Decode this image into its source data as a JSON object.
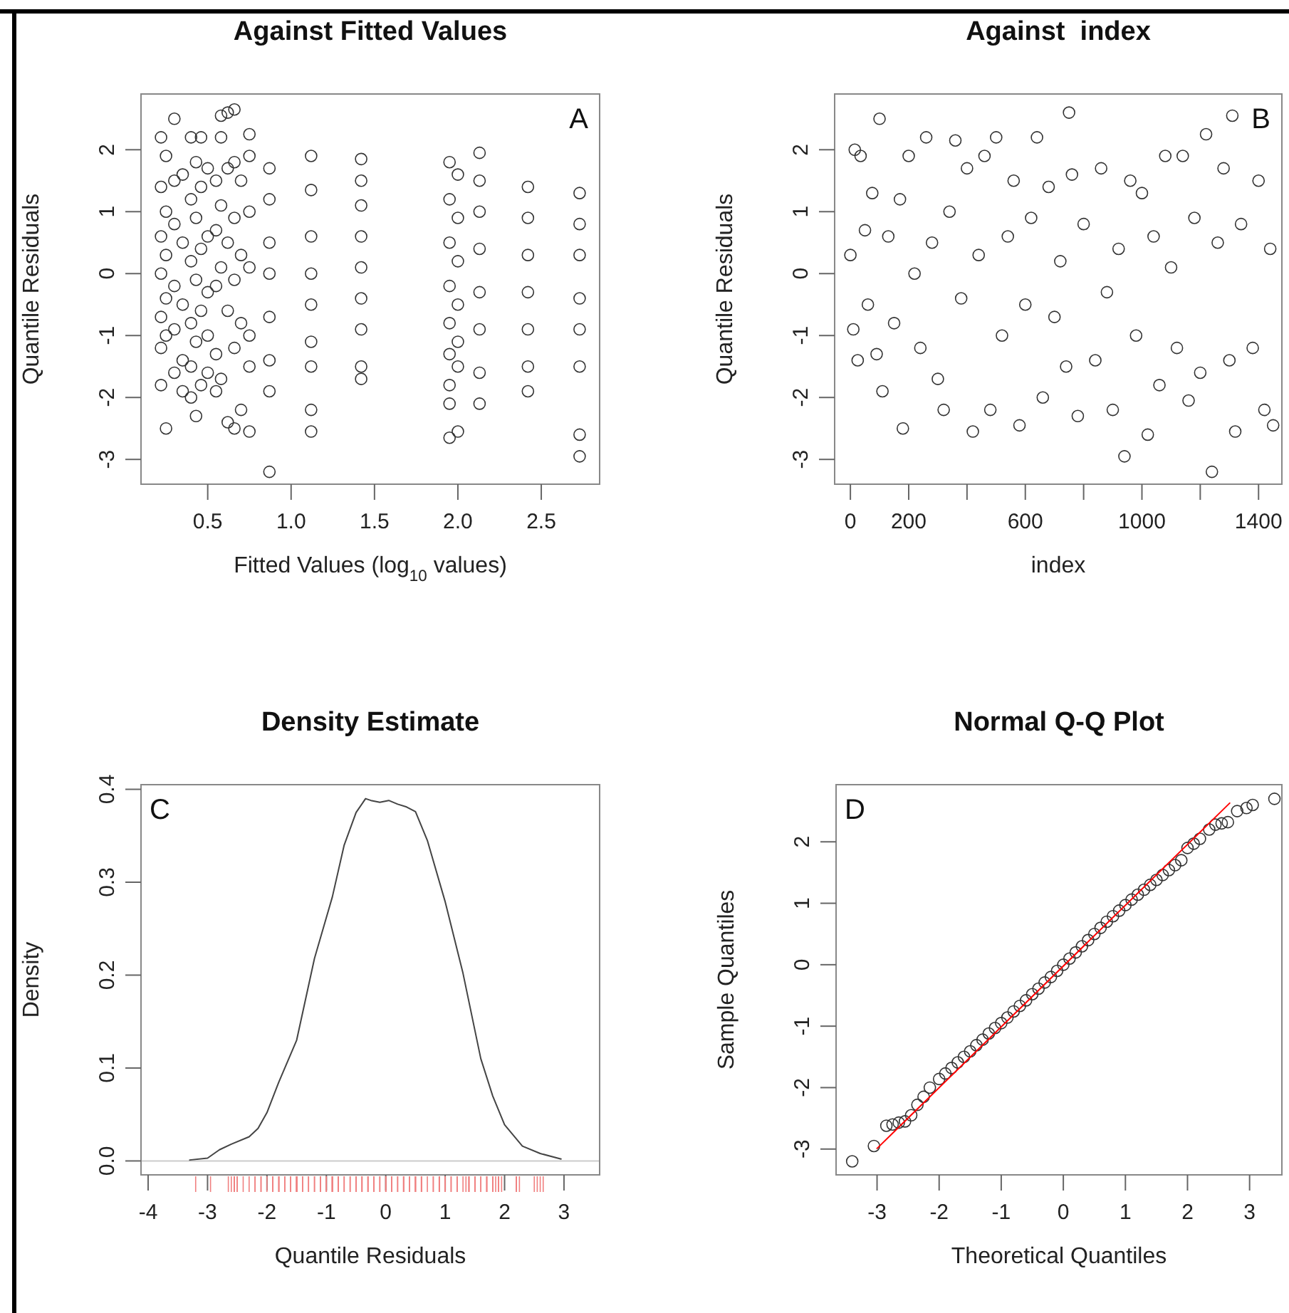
{
  "chart_data": [
    {
      "type": "scatter",
      "title": "Against Fitted Values",
      "xlabel": "Fitted Values (log$_{10}$ values)",
      "ylabel": "Quantile Residuals",
      "annotations": [
        "A"
      ],
      "marker": "circle",
      "xlim": [
        0.1,
        2.85
      ],
      "ylim": [
        -3.4,
        2.9
      ],
      "xticks": [
        0.5,
        {
          "value": 1,
          "label": "1.0"
        },
        1.5,
        {
          "value": 2,
          "label": "2.0"
        },
        2.5
      ],
      "yticks": [
        -3,
        -2,
        -1,
        0,
        1,
        2
      ],
      "series": [
        {
          "color": "#333333",
          "x": [
            0.22,
            0.22,
            0.22,
            0.22,
            0.22,
            0.22,
            0.22,
            0.25,
            0.25,
            0.25,
            0.25,
            0.25,
            0.25,
            0.3,
            0.3,
            0.3,
            0.3,
            0.3,
            0.3,
            0.35,
            0.35,
            0.35,
            0.35,
            0.35,
            0.4,
            0.4,
            0.4,
            0.4,
            0.4,
            0.4,
            0.43,
            0.43,
            0.43,
            0.43,
            0.43,
            0.46,
            0.46,
            0.46,
            0.46,
            0.46,
            0.5,
            0.5,
            0.5,
            0.5,
            0.5,
            0.55,
            0.55,
            0.55,
            0.55,
            0.55,
            0.58,
            0.58,
            0.58,
            0.58,
            0.58,
            0.62,
            0.62,
            0.62,
            0.62,
            0.62,
            0.66,
            0.66,
            0.66,
            0.66,
            0.66,
            0.66,
            0.7,
            0.7,
            0.7,
            0.7,
            0.75,
            0.75,
            0.75,
            0.75,
            0.75,
            0.75,
            0.75,
            0.87,
            0.87,
            0.87,
            0.87,
            0.87,
            0.87,
            0.87,
            0.87,
            1.12,
            1.12,
            1.12,
            1.12,
            1.12,
            1.12,
            1.12,
            1.12,
            1.12,
            1.42,
            1.42,
            1.42,
            1.42,
            1.42,
            1.42,
            1.42,
            1.42,
            1.42,
            1.95,
            1.95,
            1.95,
            1.95,
            1.95,
            1.95,
            1.95,
            1.95,
            1.95,
            2.0,
            2.0,
            2.0,
            2.0,
            2.0,
            2.0,
            2.0,
            2.13,
            2.13,
            2.13,
            2.13,
            2.13,
            2.13,
            2.13,
            2.13,
            2.42,
            2.42,
            2.42,
            2.42,
            2.42,
            2.42,
            2.42,
            2.73,
            2.73,
            2.73,
            2.73,
            2.73,
            2.73,
            2.73,
            2.73
          ],
          "values": [
            2.2,
            1.4,
            0.6,
            0.0,
            -0.7,
            -1.2,
            -1.8,
            1.9,
            1.0,
            0.3,
            -0.4,
            -1.0,
            -2.5,
            2.5,
            1.5,
            0.8,
            -0.2,
            -0.9,
            -1.6,
            1.6,
            0.5,
            -0.5,
            -1.4,
            -1.9,
            2.2,
            1.2,
            0.2,
            -0.8,
            -1.5,
            -2.0,
            1.8,
            0.9,
            -0.1,
            -1.1,
            -2.3,
            2.2,
            1.4,
            0.4,
            -0.6,
            -1.8,
            1.7,
            0.6,
            -0.3,
            -1.0,
            -1.6,
            1.5,
            0.7,
            -0.2,
            -1.3,
            -1.9,
            2.55,
            2.2,
            1.1,
            0.1,
            -1.7,
            2.6,
            1.7,
            0.5,
            -0.6,
            -2.4,
            2.65,
            1.8,
            0.9,
            -0.1,
            -1.2,
            -2.5,
            1.5,
            0.3,
            -0.8,
            -2.2,
            2.25,
            1.9,
            1.0,
            0.1,
            -1.0,
            -1.5,
            -2.55,
            1.7,
            1.2,
            0.5,
            0.0,
            -0.7,
            -1.4,
            -1.9,
            -3.2,
            1.9,
            1.35,
            0.6,
            0.0,
            -0.5,
            -1.1,
            -1.5,
            -2.2,
            -2.55,
            1.85,
            1.5,
            1.1,
            0.6,
            0.1,
            -0.4,
            -0.9,
            -1.5,
            -1.7,
            1.8,
            1.2,
            0.5,
            -0.2,
            -0.8,
            -1.3,
            -1.8,
            -2.1,
            -2.65,
            1.6,
            0.9,
            0.2,
            -0.5,
            -1.1,
            -1.5,
            -2.55,
            1.95,
            1.5,
            1.0,
            0.4,
            -0.3,
            -0.9,
            -1.6,
            -2.1,
            1.4,
            0.9,
            0.3,
            -0.3,
            -0.9,
            -1.5,
            -1.9,
            1.3,
            0.8,
            0.3,
            -0.4,
            -0.9,
            -1.5,
            -2.6,
            -2.95
          ]
        }
      ]
    },
    {
      "type": "scatter",
      "title": "Against  index",
      "xlabel": "index",
      "ylabel": "Quantile Residuals",
      "annotations": [
        "B"
      ],
      "marker": "circle",
      "xlim": [
        -54,
        1480
      ],
      "ylim": [
        -3.4,
        2.9
      ],
      "xticks": [
        0,
        200,
        {
          "value": 400,
          "label": null
        },
        600,
        {
          "value": 800,
          "label": null
        },
        1000,
        {
          "value": 1200,
          "label": null
        },
        1400
      ],
      "yticks": [
        -3,
        -2,
        -1,
        0,
        1,
        2
      ],
      "series": [
        {
          "color": "#333333",
          "x": [
            0,
            10,
            15,
            25,
            35,
            50,
            60,
            75,
            90,
            100,
            110,
            130,
            150,
            170,
            180,
            200,
            220,
            240,
            260,
            280,
            300,
            320,
            340,
            360,
            380,
            400,
            420,
            440,
            460,
            480,
            500,
            520,
            540,
            560,
            580,
            600,
            620,
            640,
            660,
            680,
            700,
            720,
            740,
            750,
            760,
            780,
            800,
            840,
            860,
            880,
            900,
            920,
            940,
            960,
            980,
            1000,
            1020,
            1040,
            1060,
            1080,
            1100,
            1120,
            1140,
            1160,
            1180,
            1200,
            1220,
            1240,
            1260,
            1280,
            1300,
            1310,
            1320,
            1340,
            1380,
            1400,
            1420,
            1440,
            1450
          ],
          "values": [
            0.3,
            -0.9,
            2.0,
            -1.4,
            1.9,
            0.7,
            -0.5,
            1.3,
            -1.3,
            2.5,
            -1.9,
            0.6,
            -0.8,
            1.2,
            -2.5,
            1.9,
            0.0,
            -1.2,
            2.2,
            0.5,
            -1.7,
            -2.2,
            1.0,
            2.15,
            -0.4,
            1.7,
            -2.55,
            0.3,
            1.9,
            -2.2,
            2.2,
            -1.0,
            0.6,
            1.5,
            -2.45,
            -0.5,
            0.9,
            2.2,
            -2.0,
            1.4,
            -0.7,
            0.2,
            -1.5,
            2.6,
            1.6,
            -2.3,
            0.8,
            -1.4,
            1.7,
            -0.3,
            -2.2,
            0.4,
            -2.95,
            1.5,
            -1.0,
            1.3,
            -2.6,
            0.6,
            -1.8,
            1.9,
            0.1,
            -1.2,
            1.9,
            -2.05,
            0.9,
            -1.6,
            2.25,
            -3.2,
            0.5,
            1.7,
            -1.4,
            2.55,
            -2.55,
            0.8,
            -1.2,
            1.5,
            -2.2,
            0.4,
            -2.45
          ]
        }
      ]
    },
    {
      "type": "line",
      "title": "Density Estimate",
      "xlabel": "Quantile Residuals",
      "ylabel": "Density",
      "annotations": [
        "C"
      ],
      "xlim": [
        -4.12,
        3.6
      ],
      "ylim": [
        -0.015,
        0.405
      ],
      "xticks": [
        -4,
        -3,
        -2,
        -1,
        0,
        1,
        2,
        3
      ],
      "yticks": [
        {
          "value": 0,
          "label": "0.0"
        },
        0.1,
        0.2,
        0.3,
        0.4
      ],
      "ref_lines": [
        {
          "axis": "y",
          "value": 0,
          "color": "#cccccc"
        }
      ],
      "series": [
        {
          "color": "#444444",
          "x": [
            -3.3,
            -3.0,
            -2.8,
            -2.6,
            -2.3,
            -2.15,
            -2.0,
            -1.8,
            -1.5,
            -1.2,
            -0.9,
            -0.7,
            -0.5,
            -0.34,
            -0.25,
            -0.1,
            0.05,
            0.2,
            0.35,
            0.5,
            0.7,
            1.0,
            1.3,
            1.6,
            1.8,
            2.0,
            2.3,
            2.6,
            2.95
          ],
          "values": [
            0.001,
            0.003,
            0.012,
            0.018,
            0.026,
            0.035,
            0.052,
            0.085,
            0.13,
            0.218,
            0.284,
            0.34,
            0.375,
            0.39,
            0.388,
            0.386,
            0.388,
            0.384,
            0.381,
            0.376,
            0.345,
            0.279,
            0.202,
            0.11,
            0.07,
            0.039,
            0.016,
            0.008,
            0.002
          ]
        }
      ]
    },
    {
      "type": "scatter",
      "title": "Normal Q-Q Plot",
      "xlabel": "Theoretical Quantiles",
      "ylabel": "Sample Quantiles",
      "annotations": [
        "D"
      ],
      "marker": "circle",
      "xlim": [
        -3.66,
        3.52
      ],
      "ylim": [
        -3.42,
        2.93
      ],
      "xticks": [
        -3,
        -2,
        -1,
        0,
        1,
        2,
        3
      ],
      "yticks": [
        -3,
        -2,
        -1,
        0,
        1,
        2
      ],
      "series": [
        {
          "color": "#333333",
          "x": [
            -3.4,
            -3.05,
            -2.85,
            -2.75,
            -2.65,
            -2.55,
            -2.45,
            -2.35,
            -2.25,
            -2.15,
            -2.0,
            -1.9,
            -1.8,
            -1.7,
            -1.6,
            -1.5,
            -1.4,
            -1.3,
            -1.2,
            -1.1,
            -1.0,
            -0.9,
            -0.8,
            -0.7,
            -0.6,
            -0.5,
            -0.4,
            -0.3,
            -0.2,
            -0.1,
            0.0,
            0.1,
            0.2,
            0.3,
            0.4,
            0.5,
            0.6,
            0.7,
            0.8,
            0.9,
            1.0,
            1.1,
            1.2,
            1.3,
            1.4,
            1.5,
            1.6,
            1.7,
            1.8,
            1.9,
            2.0,
            2.1,
            2.2,
            2.35,
            2.45,
            2.55,
            2.65,
            2.8,
            2.95,
            3.05,
            3.4
          ],
          "values": [
            -3.2,
            -2.95,
            -2.62,
            -2.6,
            -2.57,
            -2.55,
            -2.45,
            -2.28,
            -2.15,
            -2.0,
            -1.86,
            -1.77,
            -1.68,
            -1.59,
            -1.5,
            -1.41,
            -1.31,
            -1.22,
            -1.12,
            -1.03,
            -0.95,
            -0.86,
            -0.76,
            -0.67,
            -0.58,
            -0.48,
            -0.39,
            -0.29,
            -0.2,
            -0.1,
            0.0,
            0.1,
            0.2,
            0.3,
            0.4,
            0.5,
            0.6,
            0.7,
            0.79,
            0.88,
            0.97,
            1.06,
            1.14,
            1.22,
            1.3,
            1.38,
            1.46,
            1.54,
            1.62,
            1.7,
            1.9,
            1.97,
            2.05,
            2.2,
            2.28,
            2.3,
            2.32,
            2.5,
            2.55,
            2.6,
            2.7
          ]
        },
        {
          "type": "line",
          "marker": "none",
          "color": "#ff0000",
          "x": [
            -3.0,
            2.68
          ],
          "values": [
            -2.99,
            2.63
          ]
        }
      ]
    }
  ]
}
